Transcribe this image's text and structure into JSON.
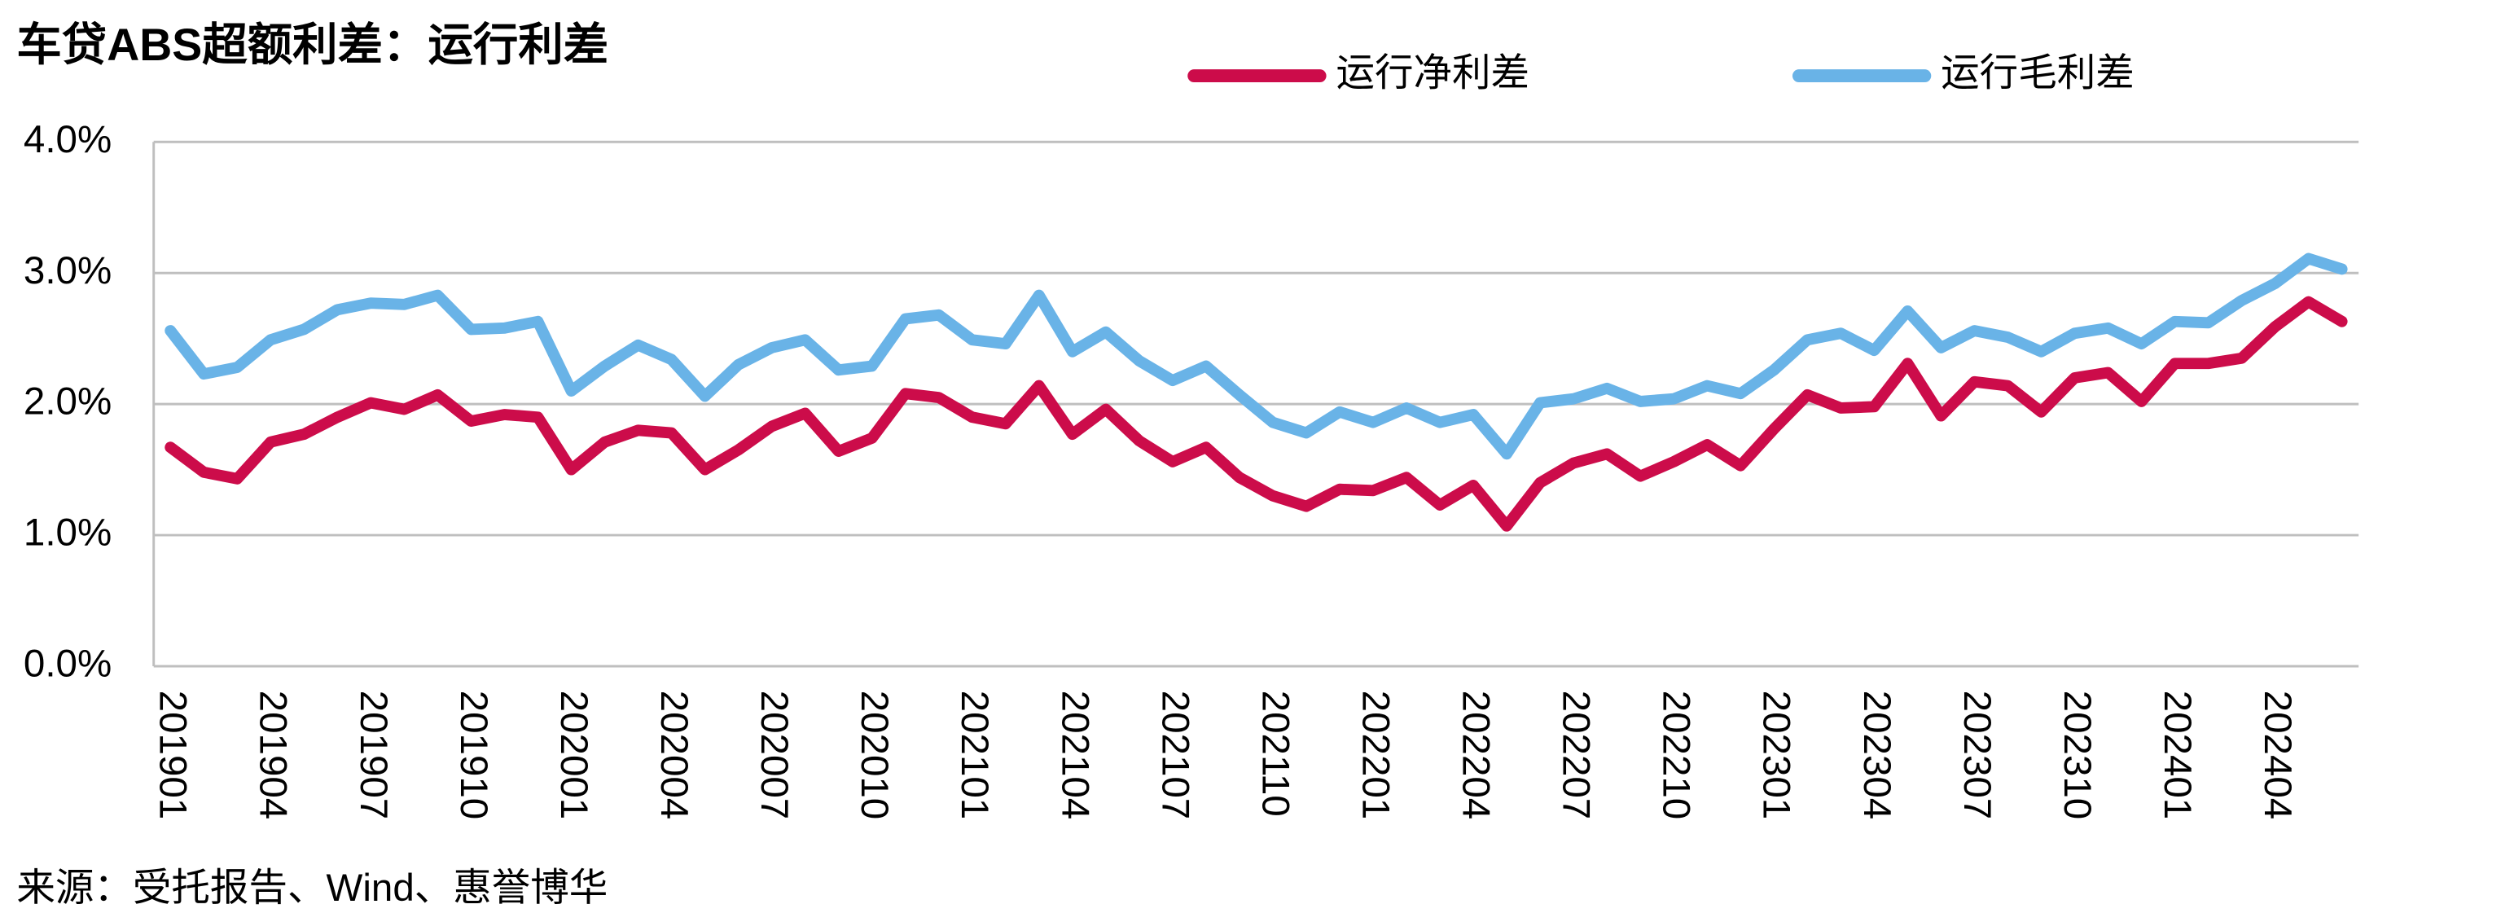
{
  "chart_data": {
    "type": "line",
    "title": "车贷ABS超额利差：运行利差",
    "source": "来源：受托报告、Wind、惠誉博华",
    "categories": [
      "201901",
      null,
      null,
      "201904",
      null,
      null,
      "201907",
      null,
      null,
      "201910",
      null,
      null,
      "202001",
      null,
      null,
      "202004",
      null,
      null,
      "202007",
      null,
      null,
      "202010",
      null,
      null,
      "202101",
      null,
      null,
      "202104",
      null,
      null,
      "202107",
      null,
      null,
      "202110",
      null,
      null,
      "202201",
      null,
      null,
      "202204",
      null,
      null,
      "202207",
      null,
      null,
      "202210",
      null,
      null,
      "202301",
      null,
      null,
      "202304",
      null,
      null,
      "202307",
      null,
      null,
      "202310",
      null,
      null,
      "202401",
      null,
      null,
      "202404",
      null,
      null
    ],
    "series": [
      {
        "name": "运行净利差",
        "color": "#cc0c4a",
        "values": [
          1.67,
          1.48,
          1.43,
          1.71,
          1.77,
          1.9,
          2.01,
          1.96,
          2.07,
          1.87,
          1.92,
          1.9,
          1.5,
          1.71,
          1.8,
          1.78,
          1.5,
          1.65,
          1.83,
          1.93,
          1.64,
          1.74,
          2.08,
          2.05,
          1.9,
          1.85,
          2.14,
          1.77,
          1.96,
          1.72,
          1.56,
          1.67,
          1.44,
          1.3,
          1.22,
          1.35,
          1.34,
          1.44,
          1.23,
          1.38,
          1.07,
          1.4,
          1.55,
          1.62,
          1.45,
          1.56,
          1.69,
          1.53,
          1.81,
          2.07,
          1.97,
          1.98,
          2.31,
          1.91,
          2.17,
          2.14,
          1.94,
          2.2,
          2.24,
          2.02,
          2.31,
          2.31,
          2.35,
          2.59,
          2.78,
          2.63
        ]
      },
      {
        "name": "运行毛利差",
        "color": "#69b3e7",
        "values": [
          2.56,
          2.23,
          2.28,
          2.49,
          2.57,
          2.72,
          2.77,
          2.76,
          2.83,
          2.57,
          2.58,
          2.63,
          2.1,
          2.29,
          2.45,
          2.34,
          2.06,
          2.3,
          2.43,
          2.49,
          2.26,
          2.29,
          2.65,
          2.68,
          2.49,
          2.46,
          2.83,
          2.4,
          2.55,
          2.33,
          2.18,
          2.29,
          2.07,
          1.86,
          1.78,
          1.94,
          1.86,
          1.97,
          1.86,
          1.92,
          1.62,
          2.01,
          2.04,
          2.12,
          2.02,
          2.04,
          2.14,
          2.08,
          2.26,
          2.49,
          2.54,
          2.41,
          2.71,
          2.43,
          2.56,
          2.51,
          2.4,
          2.54,
          2.58,
          2.46,
          2.63,
          2.62,
          2.79,
          2.92,
          3.11,
          3.03
        ]
      }
    ],
    "ylim": [
      0,
      4
    ],
    "yticks": [
      {
        "value": 0,
        "label": "0.0%"
      },
      {
        "value": 1,
        "label": "1.0%"
      },
      {
        "value": 2,
        "label": "2.0%"
      },
      {
        "value": 3,
        "label": "3.0%"
      },
      {
        "value": 4,
        "label": "4.0%"
      }
    ],
    "grid": true,
    "legend": "top"
  }
}
